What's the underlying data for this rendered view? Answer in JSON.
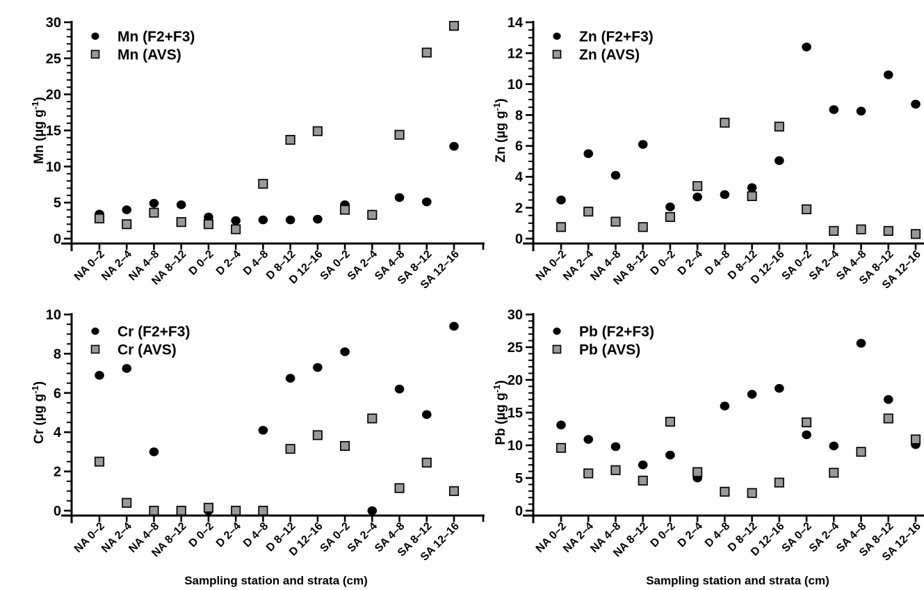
{
  "page": {
    "background": "#ffffff",
    "xlabel": "Sampling station and strata (cm)"
  },
  "colors": {
    "axis": "#000000",
    "text": "#000000",
    "circle_fill": "#000000",
    "square_fill": "#999999",
    "square_stroke": "#000000"
  },
  "chart_data": [
    {
      "id": "mn",
      "type": "scatter",
      "ylabel": "Mn (µg g⁻¹)",
      "xlabel": "",
      "show_xlabel": false,
      "ylim": [
        0,
        30
      ],
      "ytick_major": 5,
      "ytick_minor": 1,
      "legend_position": "top-left-inside",
      "categories": [
        "NA 0–2",
        "NA 2–4",
        "NA 4–8",
        "NA 8–12",
        "D 0–2",
        "D 2–4",
        "D 4–8",
        "D 8–12",
        "D 12–16",
        "SA 0–2",
        "SA 2–4",
        "SA 4–8",
        "SA 8–12",
        "SA 12–16"
      ],
      "series": [
        {
          "name": "Mn (F2+F3)",
          "marker": "circle",
          "color": "#000000",
          "values": [
            3.4,
            4.0,
            4.9,
            4.7,
            3.0,
            2.5,
            2.6,
            2.6,
            2.7,
            4.7,
            3.4,
            5.7,
            5.1,
            12.8
          ]
        },
        {
          "name": "Mn (AVS)",
          "marker": "square",
          "color": "#999999",
          "values": [
            2.8,
            2.0,
            3.6,
            2.3,
            2.0,
            1.3,
            7.6,
            13.7,
            14.9,
            4.0,
            3.3,
            14.4,
            25.8,
            29.5
          ]
        }
      ]
    },
    {
      "id": "zn",
      "type": "scatter",
      "ylabel": "Zn (µg g⁻¹)",
      "xlabel": "",
      "show_xlabel": false,
      "ylim": [
        0,
        14
      ],
      "ytick_major": 2,
      "ytick_minor": 0.5,
      "legend_position": "top-left-inside",
      "categories": [
        "NA 0–2",
        "NA 2–4",
        "NA 4–8",
        "NA 8–12",
        "D 0–2",
        "D 2–4",
        "D 4–8",
        "D 8–12",
        "D 12–16",
        "SA 0–2",
        "SA 2–4",
        "SA 4–8",
        "SA 8–12",
        "SA 12–16"
      ],
      "series": [
        {
          "name": "Zn (F2+F3)",
          "marker": "circle",
          "color": "#000000",
          "values": [
            2.5,
            5.5,
            4.1,
            6.1,
            2.05,
            2.7,
            2.85,
            3.3,
            5.05,
            12.4,
            8.35,
            8.25,
            10.6,
            8.7
          ]
        },
        {
          "name": "Zn (AVS)",
          "marker": "square",
          "color": "#999999",
          "values": [
            0.75,
            1.75,
            1.1,
            0.75,
            1.4,
            3.4,
            7.5,
            2.75,
            7.25,
            1.9,
            0.5,
            0.6,
            0.5,
            0.3
          ]
        }
      ]
    },
    {
      "id": "cr",
      "type": "scatter",
      "ylabel": "Cr (µg g⁻¹)",
      "xlabel": "Sampling station and strata (cm)",
      "show_xlabel": true,
      "ylim": [
        0,
        10
      ],
      "ytick_major": 2,
      "ytick_minor": 0.5,
      "legend_position": "top-left-inside",
      "categories": [
        "NA 0–2",
        "NA 2–4",
        "NA 4–8",
        "NA 8–12",
        "D 0–2",
        "D 2–4",
        "D 4–8",
        "D 8–12",
        "D 12–16",
        "SA 0–2",
        "SA 2–4",
        "SA 4–8",
        "SA 8–12",
        "SA 12–16"
      ],
      "series": [
        {
          "name": "Cr (F2+F3)",
          "marker": "circle",
          "color": "#000000",
          "values": [
            6.9,
            7.25,
            3.0,
            0.0,
            0.0,
            0.0,
            4.1,
            6.75,
            7.3,
            8.1,
            0.0,
            6.2,
            4.9,
            9.4
          ]
        },
        {
          "name": "Cr (AVS)",
          "marker": "square",
          "color": "#999999",
          "values": [
            2.5,
            0.4,
            0.0,
            0.0,
            0.15,
            0.0,
            0.0,
            3.15,
            3.85,
            3.3,
            4.7,
            1.15,
            2.45,
            1.0
          ]
        }
      ]
    },
    {
      "id": "pb",
      "type": "scatter",
      "ylabel": "Pb (µg g⁻¹)",
      "xlabel": "Sampling station and strata (cm)",
      "show_xlabel": true,
      "ylim": [
        0,
        30
      ],
      "ytick_major": 5,
      "ytick_minor": 1,
      "legend_position": "top-left-inside",
      "categories": [
        "NA 0–2",
        "NA 2–4",
        "NA 4–8",
        "NA 8–12",
        "D 0–2",
        "D 2–4",
        "D 4–8",
        "D 8–12",
        "D 12–16",
        "SA 0–2",
        "SA 2–4",
        "SA 4–8",
        "SA 8–12",
        "SA 12–16"
      ],
      "series": [
        {
          "name": "Pb (F2+F3)",
          "marker": "circle",
          "color": "#000000",
          "values": [
            13.1,
            10.9,
            9.8,
            7.0,
            8.5,
            5.0,
            16.0,
            17.8,
            18.7,
            11.6,
            9.9,
            25.6,
            17.0,
            10.1
          ]
        },
        {
          "name": "Pb (AVS)",
          "marker": "square",
          "color": "#999999",
          "values": [
            9.6,
            5.7,
            6.2,
            4.6,
            13.6,
            5.9,
            2.9,
            2.7,
            4.3,
            13.5,
            5.8,
            9.0,
            14.1,
            10.9
          ]
        }
      ]
    }
  ]
}
